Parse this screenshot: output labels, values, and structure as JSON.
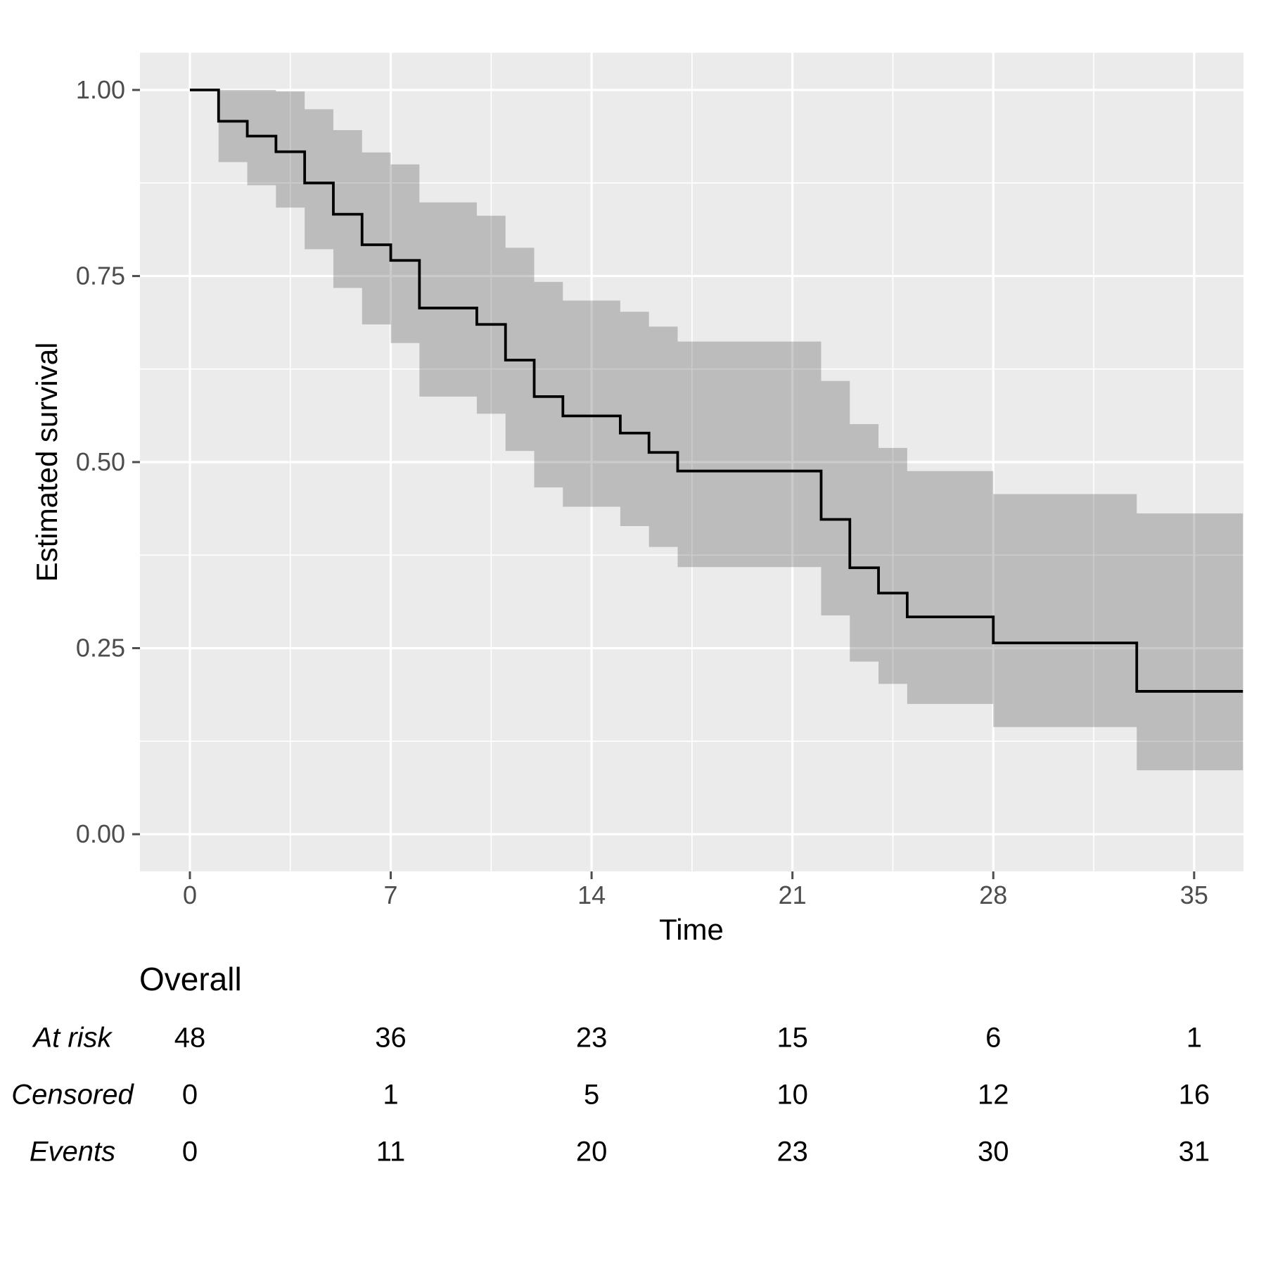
{
  "chart_data": {
    "type": "line",
    "subtype": "kaplan-meier-step",
    "title": "",
    "xlabel": "Time",
    "ylabel": "Estimated survival",
    "legend": "none",
    "grid": "on",
    "series_name": "Overall",
    "axes": {
      "x_ticks": [
        0,
        7,
        14,
        21,
        28,
        35
      ],
      "x_tick_labels": [
        "0",
        "7",
        "14",
        "21",
        "28",
        "35"
      ],
      "x_minor_ticks": [
        3.5,
        10.5,
        17.5,
        24.5,
        31.5
      ],
      "x_domain": [
        -1.74,
        36.72
      ],
      "y_ticks": [
        0,
        0.25,
        0.5,
        0.75,
        1
      ],
      "y_tick_labels": [
        "0.00",
        "0.25",
        "0.50",
        "0.75",
        "1.00"
      ],
      "y_minor_ticks": [
        0.125,
        0.375,
        0.625,
        0.875
      ],
      "y_domain": [
        -0.05,
        1.05
      ]
    },
    "steps": [
      {
        "t": 0,
        "s": 1.0,
        "lo": null,
        "hi": null
      },
      {
        "t": 1,
        "s": 0.958,
        "lo": 0.903,
        "hi": 1.0
      },
      {
        "t": 2,
        "s": 0.938,
        "lo": 0.872,
        "hi": 1.0
      },
      {
        "t": 3,
        "s": 0.917,
        "lo": 0.842,
        "hi": 0.998
      },
      {
        "t": 4,
        "s": 0.875,
        "lo": 0.786,
        "hi": 0.974
      },
      {
        "t": 5,
        "s": 0.833,
        "lo": 0.734,
        "hi": 0.946
      },
      {
        "t": 6,
        "s": 0.792,
        "lo": 0.685,
        "hi": 0.916
      },
      {
        "t": 7,
        "s": 0.771,
        "lo": 0.66,
        "hi": 0.9
      },
      {
        "t": 8,
        "s": 0.707,
        "lo": 0.588,
        "hi": 0.849
      },
      {
        "t": 10,
        "s": 0.685,
        "lo": 0.565,
        "hi": 0.831
      },
      {
        "t": 11,
        "s": 0.637,
        "lo": 0.515,
        "hi": 0.788
      },
      {
        "t": 12,
        "s": 0.588,
        "lo": 0.466,
        "hi": 0.742
      },
      {
        "t": 13,
        "s": 0.562,
        "lo": 0.44,
        "hi": 0.717
      },
      {
        "t": 15,
        "s": 0.539,
        "lo": 0.414,
        "hi": 0.702
      },
      {
        "t": 16,
        "s": 0.513,
        "lo": 0.386,
        "hi": 0.682
      },
      {
        "t": 17,
        "s": 0.488,
        "lo": 0.359,
        "hi": 0.662
      },
      {
        "t": 22,
        "s": 0.423,
        "lo": 0.294,
        "hi": 0.609
      },
      {
        "t": 23,
        "s": 0.358,
        "lo": 0.232,
        "hi": 0.551
      },
      {
        "t": 24,
        "s": 0.324,
        "lo": 0.202,
        "hi": 0.519
      },
      {
        "t": 25,
        "s": 0.292,
        "lo": 0.175,
        "hi": 0.488
      },
      {
        "t": 28,
        "s": 0.257,
        "lo": 0.144,
        "hi": 0.457
      },
      {
        "t": 33,
        "s": 0.192,
        "lo": 0.086,
        "hi": 0.431
      }
    ],
    "end_time": 36.7
  },
  "risk_table": {
    "title": "Overall",
    "times": [
      0,
      7,
      14,
      21,
      28,
      35
    ],
    "rows": [
      {
        "label": "At risk",
        "values": [
          "48",
          "36",
          "23",
          "15",
          "6",
          "1"
        ]
      },
      {
        "label": "Censored",
        "values": [
          "0",
          "1",
          "5",
          "10",
          "12",
          "16"
        ]
      },
      {
        "label": "Events",
        "values": [
          "0",
          "11",
          "20",
          "23",
          "30",
          "31"
        ]
      }
    ]
  },
  "colors": {
    "panel_background": "#EBEBEB",
    "gridline": "#FFFFFF",
    "ribbon_fill": "rgba(70,70,70,0.28)",
    "curve": "#000000",
    "tick_text": "#4D4D4D",
    "title_text": "#000000"
  }
}
